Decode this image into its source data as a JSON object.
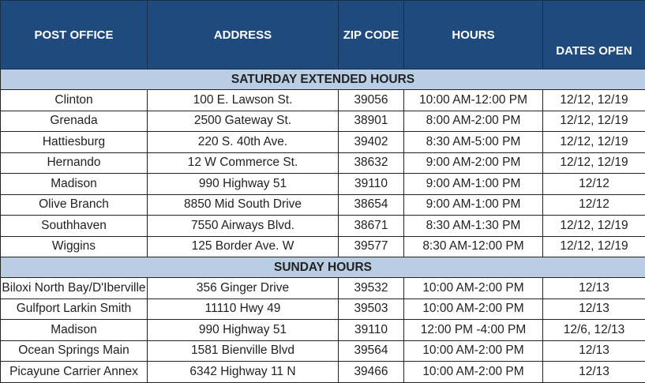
{
  "headers": [
    "POST OFFICE",
    "ADDRESS",
    "ZIP CODE",
    "HOURS",
    "DATES OPEN"
  ],
  "colors": {
    "header_bg": "#1f4a7e",
    "section_bg": "#b9cde5"
  },
  "sections": [
    {
      "title": "SATURDAY EXTENDED HOURS",
      "rows": [
        [
          "Clinton",
          "100 E. Lawson St.",
          "39056",
          "10:00 AM-12:00 PM",
          "12/12, 12/19"
        ],
        [
          "Grenada",
          "2500 Gateway St.",
          "38901",
          "8:00 AM-2:00 PM",
          "12/12, 12/19"
        ],
        [
          "Hattiesburg",
          "220 S. 40th Ave.",
          "39402",
          "8:30 AM-5:00 PM",
          "12/12, 12/19"
        ],
        [
          "Hernando",
          "12 W Commerce St.",
          "38632",
          "9:00 AM-2:00 PM",
          "12/12, 12/19"
        ],
        [
          "Madison",
          "990 Highway 51",
          "39110",
          "9:00 AM-1:00 PM",
          "12/12"
        ],
        [
          "Olive Branch",
          "8850 Mid South Drive",
          "38654",
          "9:00 AM-1:00 PM",
          "12/12"
        ],
        [
          "Southhaven",
          "7550 Airways Blvd.",
          "38671",
          "8:30 AM-1:30 PM",
          "12/12, 12/19"
        ],
        [
          "Wiggins",
          "125 Border Ave. W",
          "39577",
          "8:30 AM-12:00 PM",
          "12/12, 12/19"
        ]
      ]
    },
    {
      "title": "SUNDAY HOURS",
      "rows": [
        [
          "Biloxi North Bay/D'Iberville",
          "356 Ginger Drive",
          "39532",
          "10:00 AM-2:00 PM",
          "12/13"
        ],
        [
          "Gulfport Larkin Smith",
          "11110 Hwy 49",
          "39503",
          "10:00 AM-2:00 PM",
          "12/13"
        ],
        [
          "Madison",
          "990 Highway 51",
          "39110",
          "12:00 PM -4:00 PM",
          "12/6, 12/13"
        ],
        [
          "Ocean Springs Main",
          "1581 Bienville Blvd",
          "39564",
          "10:00 AM-2:00 PM",
          "12/13"
        ],
        [
          "Picayune Carrier Annex",
          "6342 Highway 11 N",
          "39466",
          "10:00 AM-2:00 PM",
          "12/13"
        ]
      ]
    }
  ]
}
